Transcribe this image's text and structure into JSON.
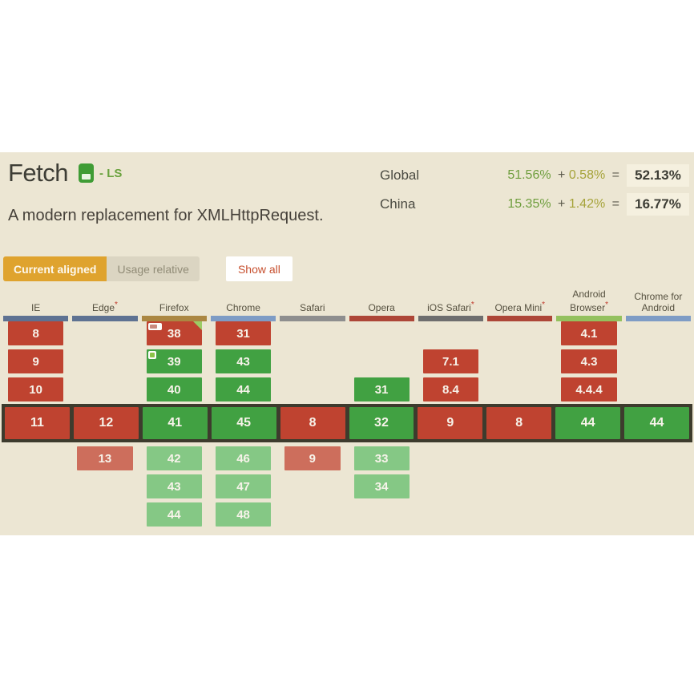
{
  "header": {
    "title": "Fetch",
    "spec_label": "- LS",
    "description": "A modern replacement for XMLHttpRequest."
  },
  "stats": [
    {
      "region": "Global",
      "supported": "51.56%",
      "plus": "+",
      "partial": "0.58%",
      "equals": "=",
      "total": "52.13%"
    },
    {
      "region": "China",
      "supported": "15.35%",
      "plus": "+",
      "partial": "1.42%",
      "equals": "=",
      "total": "16.77%"
    }
  ],
  "controls": {
    "current_aligned": "Current aligned",
    "usage_relative": "Usage relative",
    "show_all": "Show all"
  },
  "grid": {
    "columns": [
      {
        "name": "IE",
        "note": "",
        "bar_color": "#5e7292"
      },
      {
        "name": "Edge",
        "note": "*",
        "bar_color": "#5e7292"
      },
      {
        "name": "Firefox",
        "note": "",
        "bar_color": "#ab8742"
      },
      {
        "name": "Chrome",
        "note": "",
        "bar_color": "#7e9cc5"
      },
      {
        "name": "Safari",
        "note": "",
        "bar_color": "#8e8e8e"
      },
      {
        "name": "Opera",
        "note": "",
        "bar_color": "#ad4637"
      },
      {
        "name": "iOS Safari",
        "note": "*",
        "bar_color": "#6e6e6e"
      },
      {
        "name": "Opera Mini",
        "note": "*",
        "bar_color": "#ad4637"
      },
      {
        "name": "Android Browser",
        "note": "*",
        "bar_color": "#94c15e"
      },
      {
        "name": "Chrome for Android",
        "note": "",
        "bar_color": "#7e9cc5"
      }
    ],
    "rows": [
      {
        "type": "past",
        "cells": [
          {
            "version": "8",
            "support": "n"
          },
          null,
          {
            "version": "38",
            "support": "n",
            "badges": [
              "note",
              "corner"
            ]
          },
          {
            "version": "31",
            "support": "n"
          },
          null,
          null,
          null,
          null,
          {
            "version": "4.1",
            "support": "n"
          },
          null
        ]
      },
      {
        "type": "past",
        "cells": [
          {
            "version": "9",
            "support": "n"
          },
          null,
          {
            "version": "39",
            "support": "y",
            "badges": [
              "flag"
            ]
          },
          {
            "version": "43",
            "support": "y"
          },
          null,
          null,
          {
            "version": "7.1",
            "support": "n"
          },
          null,
          {
            "version": "4.3",
            "support": "n"
          },
          null
        ]
      },
      {
        "type": "past",
        "cells": [
          {
            "version": "10",
            "support": "n"
          },
          null,
          {
            "version": "40",
            "support": "y"
          },
          {
            "version": "44",
            "support": "y"
          },
          null,
          {
            "version": "31",
            "support": "y"
          },
          {
            "version": "8.4",
            "support": "n"
          },
          null,
          {
            "version": "4.4.4",
            "support": "n"
          },
          null
        ]
      },
      {
        "type": "current",
        "cells": [
          {
            "version": "11",
            "support": "n"
          },
          {
            "version": "12",
            "support": "n"
          },
          {
            "version": "41",
            "support": "y"
          },
          {
            "version": "45",
            "support": "y"
          },
          {
            "version": "8",
            "support": "n"
          },
          {
            "version": "32",
            "support": "y"
          },
          {
            "version": "9",
            "support": "n"
          },
          {
            "version": "8",
            "support": "n"
          },
          {
            "version": "44",
            "support": "y"
          },
          {
            "version": "44",
            "support": "y"
          }
        ]
      },
      {
        "type": "future",
        "cells": [
          null,
          {
            "version": "13",
            "support": "nf"
          },
          {
            "version": "42",
            "support": "yf"
          },
          {
            "version": "46",
            "support": "yf"
          },
          {
            "version": "9",
            "support": "nf"
          },
          {
            "version": "33",
            "support": "yf"
          },
          null,
          null,
          null,
          null
        ]
      },
      {
        "type": "future",
        "cells": [
          null,
          null,
          {
            "version": "43",
            "support": "yf"
          },
          {
            "version": "47",
            "support": "yf"
          },
          null,
          {
            "version": "34",
            "support": "yf"
          },
          null,
          null,
          null,
          null
        ]
      },
      {
        "type": "future",
        "cells": [
          null,
          null,
          {
            "version": "44",
            "support": "yf"
          },
          {
            "version": "48",
            "support": "yf"
          },
          null,
          null,
          null,
          null,
          null,
          null
        ]
      }
    ]
  },
  "colors": {
    "panel_bg": "#ece6d3",
    "supported": "#41a142",
    "unsupported": "#bf4330",
    "supported_future": "#85c885",
    "unsupported_future": "#cd6e5c",
    "current_frame": "#3d3b2d",
    "accent_orange": "#dfa32e",
    "show_all_text": "#c7502f"
  }
}
